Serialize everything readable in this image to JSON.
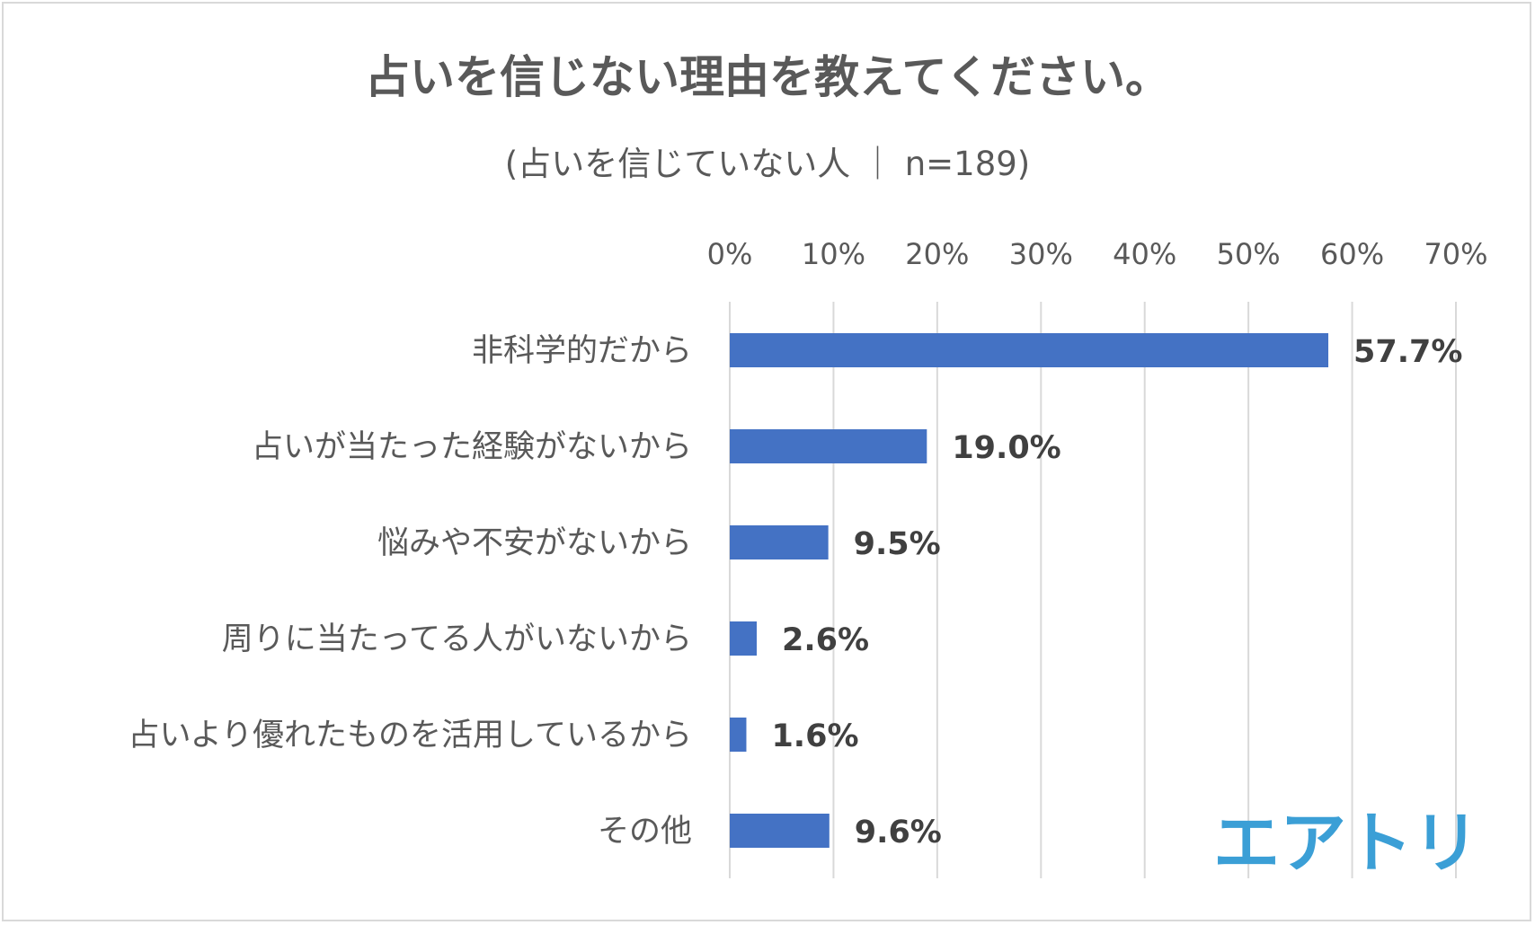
{
  "chart_data": {
    "type": "bar",
    "orientation": "horizontal",
    "title": "占いを信じない理由を教えてください。",
    "subtitle": "(占いを信じていない人 ｜ n=189)",
    "categories": [
      "非科学的だから",
      "占いが当たった経験がないから",
      "悩みや不安がないから",
      "周りに当たってる人がいないから",
      "占いより優れたものを活用しているから",
      "その他"
    ],
    "values": [
      57.7,
      19.0,
      9.5,
      2.6,
      1.6,
      9.6
    ],
    "value_labels": [
      "57.7%",
      "19.0%",
      "9.5%",
      "2.6%",
      "1.6%",
      "9.6%"
    ],
    "xlim": [
      0,
      70
    ],
    "x_ticks": [
      0,
      10,
      20,
      30,
      40,
      50,
      60,
      70
    ],
    "x_tick_labels": [
      "0%",
      "10%",
      "20%",
      "30%",
      "40%",
      "50%",
      "60%",
      "70%"
    ],
    "x_axis_position": "top",
    "grid": true,
    "bar_color": "#4472c4",
    "gridline_color": "#d9d9d9",
    "title_color": "#595959",
    "value_label_color": "#404040"
  },
  "brand": {
    "logo_text": "エアトリ",
    "logo_color": "#3b9fd6"
  }
}
